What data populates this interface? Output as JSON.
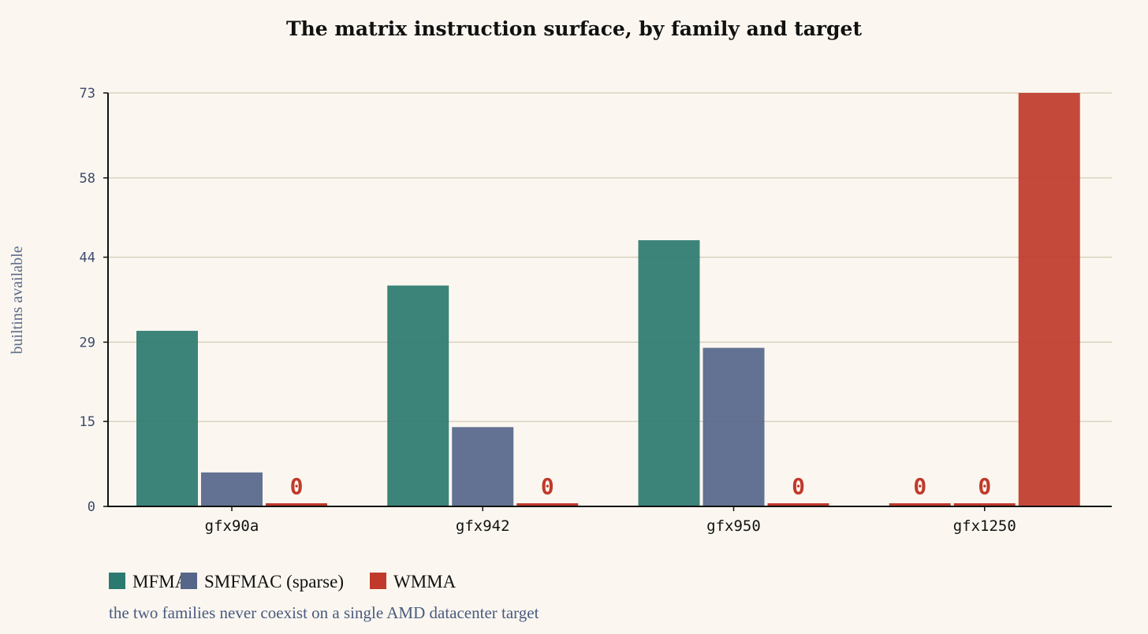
{
  "chart_data": {
    "type": "bar",
    "title": "The matrix instruction surface, by family and target",
    "ylabel": "builtins available",
    "xlabel": "",
    "categories": [
      "gfx90a",
      "gfx942",
      "gfx950",
      "gfx1250"
    ],
    "series": [
      {
        "name": "MFMA",
        "color": "#2b7a70",
        "values": [
          31,
          39,
          47,
          0
        ]
      },
      {
        "name": "SMFMAC (sparse)",
        "color": "#56668a",
        "values": [
          6,
          14,
          28,
          0
        ]
      },
      {
        "name": "WMMA",
        "color": "#c0392b",
        "values": [
          0,
          0,
          0,
          73
        ]
      }
    ],
    "yticks": [
      0,
      15,
      29,
      44,
      58,
      73
    ],
    "ylim": [
      0,
      73
    ],
    "grid": true,
    "zero_label": "0",
    "legend_position": "bottom-left",
    "note": "the two families never coexist on a single AMD datacenter target"
  }
}
